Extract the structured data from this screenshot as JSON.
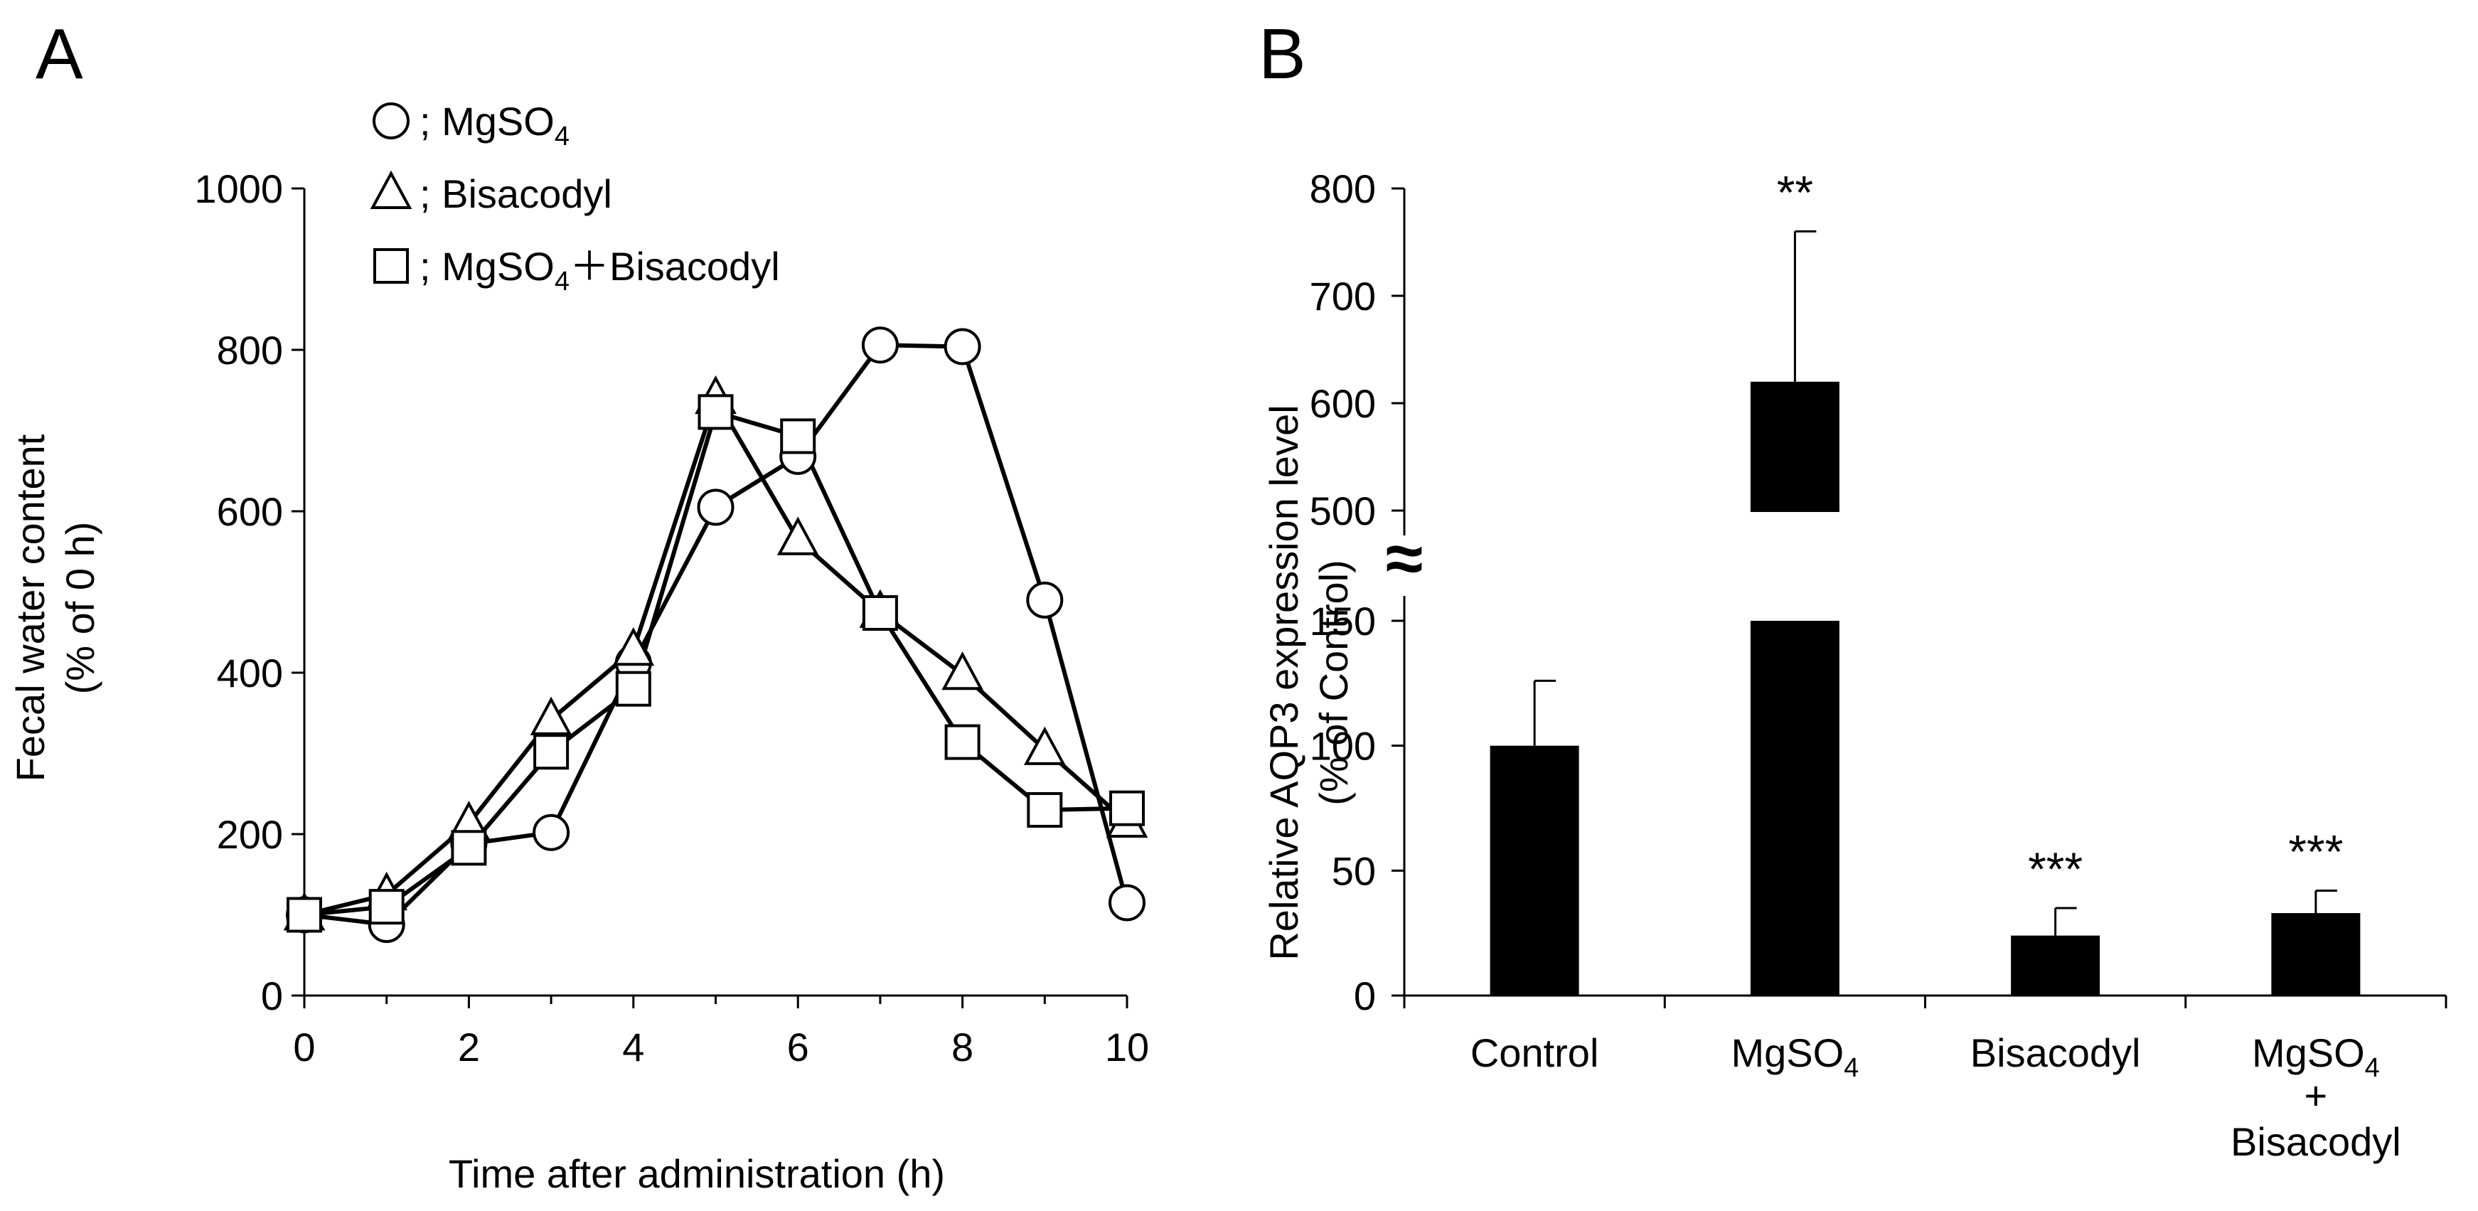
{
  "chart_data": [
    {
      "panel_label": "A",
      "type": "line",
      "xlabel": "Time after administration (h)",
      "ylabel_lines": [
        "Fecal water content",
        "(% of 0 h)"
      ],
      "xlim": [
        0,
        10
      ],
      "ylim": [
        0,
        1000
      ],
      "x_ticks": [
        "0",
        "2",
        "4",
        "6",
        "8",
        "10"
      ],
      "y_ticks": [
        "0",
        "200",
        "400",
        "600",
        "800",
        "1000"
      ],
      "x": [
        0,
        1,
        2,
        3,
        4,
        5,
        6,
        7,
        8,
        9,
        10
      ],
      "legend_position": "top-left",
      "series": [
        {
          "marker": "circle",
          "legend_text": "MgSO",
          "legend_sub": "4",
          "legend_suffix": "",
          "values": [
            100,
            88,
            188,
            202,
            412,
            605,
            668,
            806,
            804,
            490,
            115
          ]
        },
        {
          "marker": "triangle",
          "legend_text": "Bisacodyl",
          "legend_sub": "",
          "legend_suffix": "",
          "values": [
            100,
            125,
            213,
            342,
            428,
            740,
            565,
            475,
            398,
            305,
            215
          ]
        },
        {
          "marker": "square",
          "legend_text": "MgSO",
          "legend_sub": "4",
          "legend_suffix": "＋Bisacodyl",
          "values": [
            100,
            110,
            183,
            302,
            380,
            723,
            693,
            474,
            314,
            230,
            232
          ]
        }
      ],
      "legend_separator": ";"
    },
    {
      "panel_label": "B",
      "type": "bar",
      "ylabel_lines": [
        "Relative AQP3 expression level",
        "(% of Control)"
      ],
      "axis_break": true,
      "axis_break_symbol": "≈",
      "y_lower_ticks": [
        "0",
        "50",
        "100",
        "150"
      ],
      "y_upper_ticks": [
        "500",
        "600",
        "700",
        "800"
      ],
      "lower_range": [
        0,
        150
      ],
      "upper_range": [
        500,
        800
      ],
      "categories": [
        {
          "line1": "Control",
          "sub": "",
          "line2": "",
          "line3": ""
        },
        {
          "line1": "MgSO",
          "sub": "4",
          "line2": "",
          "line3": ""
        },
        {
          "line1": "Bisacodyl",
          "sub": "",
          "line2": "",
          "line3": ""
        },
        {
          "line1": "MgSO",
          "sub": "4",
          "line2": "+",
          "line3": "Bisacodyl"
        }
      ],
      "values": [
        100,
        620,
        24,
        33
      ],
      "errors": [
        26,
        140,
        11,
        9
      ],
      "significance": [
        "",
        "**",
        "***",
        "***"
      ],
      "bar_color": "#000000"
    }
  ]
}
